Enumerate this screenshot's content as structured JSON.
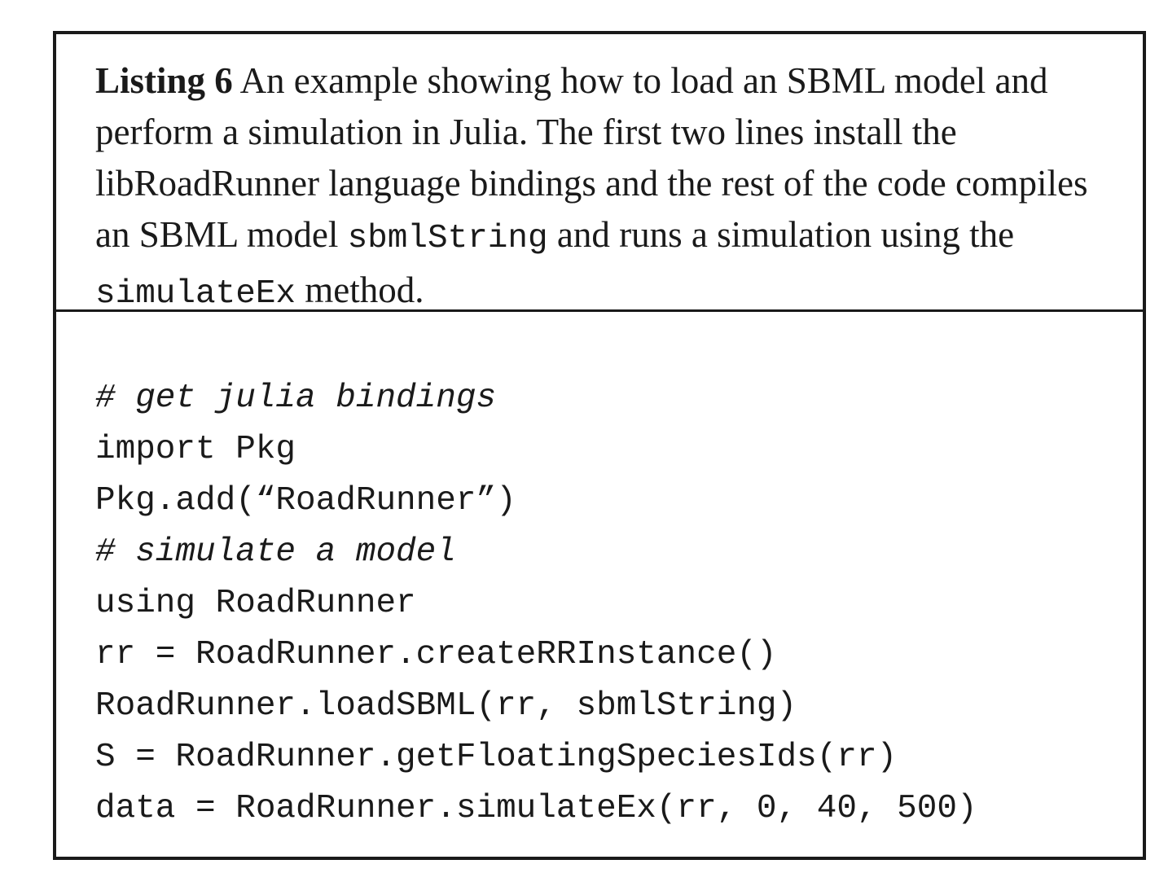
{
  "listing": {
    "label": "Listing 6",
    "caption_part1": " An example showing how to load an SBML model and perform a simulation in Julia. The first two lines install the libRoadRunner language bindings and the rest of the code compiles an SBML model ",
    "caption_code1": "sbmlString",
    "caption_part2": " and runs a simulation using the ",
    "caption_code2": "simulateEx",
    "caption_part3": " method."
  },
  "code": {
    "lines": [
      {
        "text": "# get julia bindings",
        "comment": true
      },
      {
        "text": "import Pkg",
        "comment": false
      },
      {
        "text": "Pkg.add(“RoadRunner”)",
        "comment": false
      },
      {
        "text": "# simulate a model",
        "comment": true
      },
      {
        "text": "using RoadRunner",
        "comment": false
      },
      {
        "text": "rr = RoadRunner.createRRInstance()",
        "comment": false
      },
      {
        "text": "RoadRunner.loadSBML(rr, sbmlString)",
        "comment": false
      },
      {
        "text": "S = RoadRunner.getFloatingSpeciesIds(rr)",
        "comment": false
      },
      {
        "text": "data = RoadRunner.simulateEx(rr, 0, 40, 500)",
        "comment": false
      }
    ]
  }
}
